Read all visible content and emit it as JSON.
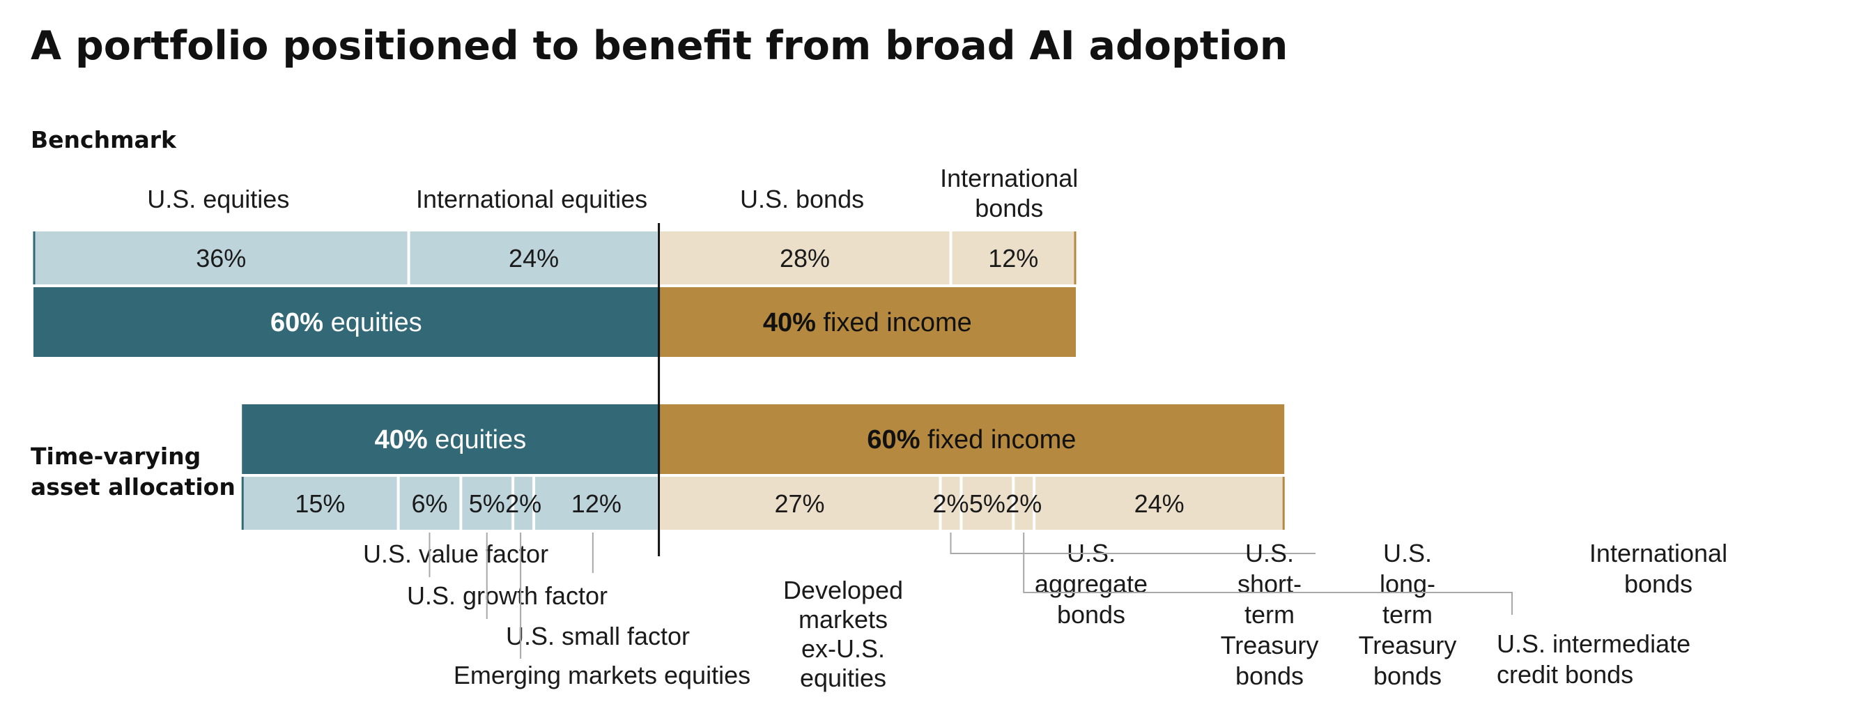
{
  "title": "A portfolio positioned to benefit from broad AI adoption",
  "colors": {
    "equity_dark": "#336977",
    "equity_light": "#bcd4da",
    "income_dark": "#b5893f",
    "income_light": "#ebdfca",
    "text": "#1a1a1a",
    "leader": "#a8a8a8"
  },
  "chart_data": {
    "type": "stacked-bar",
    "axis_max": 100,
    "benchmark": {
      "label": "Benchmark",
      "segments": [
        {
          "name": "U.S. equities",
          "value": 36,
          "value_label": "36%",
          "class": "equity"
        },
        {
          "name": "International equities",
          "value": 24,
          "value_label": "24%",
          "class": "equity"
        },
        {
          "name": "U.S. bonds",
          "value": 28,
          "value_label": "28%",
          "class": "income"
        },
        {
          "name": "International bonds",
          "value": 12,
          "value_label": "12%",
          "class": "income"
        }
      ],
      "totals": [
        {
          "value": 60,
          "pct_label": "60%",
          "text": " equities",
          "class": "equity"
        },
        {
          "value": 40,
          "pct_label": "40%",
          "text": " fixed income",
          "class": "income"
        }
      ]
    },
    "time_varying": {
      "label": "Time-varying asset allocation",
      "totals": [
        {
          "value": 40,
          "pct_label": "40%",
          "text": " equities",
          "class": "equity"
        },
        {
          "value": 60,
          "pct_label": "60%",
          "text": " fixed income",
          "class": "income"
        }
      ],
      "segments": [
        {
          "name": "U.S. value factor",
          "value": 15,
          "value_label": "15%",
          "class": "equity"
        },
        {
          "name": "U.S. growth factor",
          "value": 6,
          "value_label": "6%",
          "class": "equity"
        },
        {
          "name": "U.S. small factor",
          "value": 5,
          "value_label": "5%",
          "class": "equity"
        },
        {
          "name": "Emerging markets equities",
          "value": 2,
          "value_label": "2%",
          "class": "equity"
        },
        {
          "name": "Developed markets ex-U.S. equities",
          "value": 12,
          "value_label": "12%",
          "class": "equity"
        },
        {
          "name": "U.S. aggregate bonds",
          "value": 27,
          "value_label": "27%",
          "class": "income"
        },
        {
          "name": "U.S. short-term Treasury bonds",
          "value": 2,
          "value_label": "2%",
          "class": "income"
        },
        {
          "name": "U.S. long-term Treasury bonds",
          "value": 5,
          "value_label": "5%",
          "class": "income"
        },
        {
          "name": "U.S. intermediate credit bonds",
          "value": 2,
          "value_label": "2%",
          "class": "income"
        },
        {
          "name": "International bonds",
          "value": 24,
          "value_label": "24%",
          "class": "income"
        }
      ]
    }
  }
}
